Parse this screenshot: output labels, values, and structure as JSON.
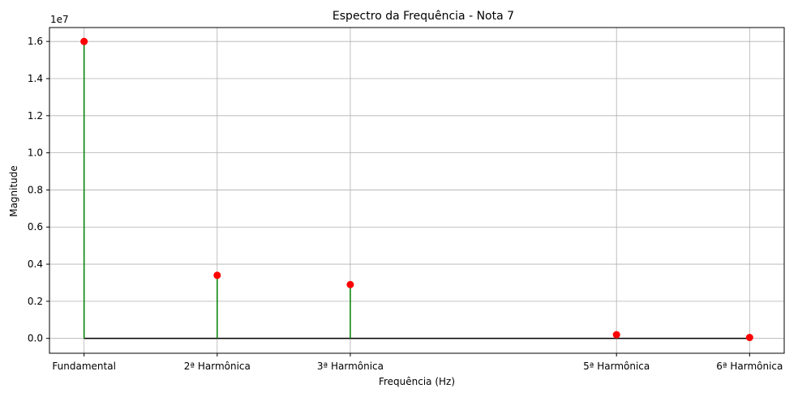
{
  "chart_data": {
    "type": "stem",
    "title": "Espectro da Frequência - Nota 7",
    "xlabel": "Frequência (Hz)",
    "ylabel": "Magnitude",
    "y_offset_label": "1e7",
    "y_scale": 10000000,
    "x_positions": [
      1,
      2,
      3,
      5,
      6
    ],
    "categories": [
      "Fundamental",
      "2ª Harmônica",
      "3ª Harmônica",
      "5ª Harmônica",
      "6ª Harmônica"
    ],
    "values": [
      16000000,
      3400000,
      2900000,
      200000,
      50000
    ],
    "xlim": [
      0.74,
      6.26
    ],
    "ylim": [
      -800000,
      16750000
    ],
    "yticks": [
      0,
      0.2,
      0.4,
      0.6,
      0.8,
      1.0,
      1.2,
      1.4,
      1.6
    ],
    "ytick_labels": [
      "0.0",
      "0.2",
      "0.4",
      "0.6",
      "0.8",
      "1.0",
      "1.2",
      "1.4",
      "1.6"
    ],
    "grid": true,
    "colors": {
      "stem": "#008000",
      "marker": "#ff0000",
      "baseline": "#000000",
      "grid": "#b0b0b0"
    }
  }
}
